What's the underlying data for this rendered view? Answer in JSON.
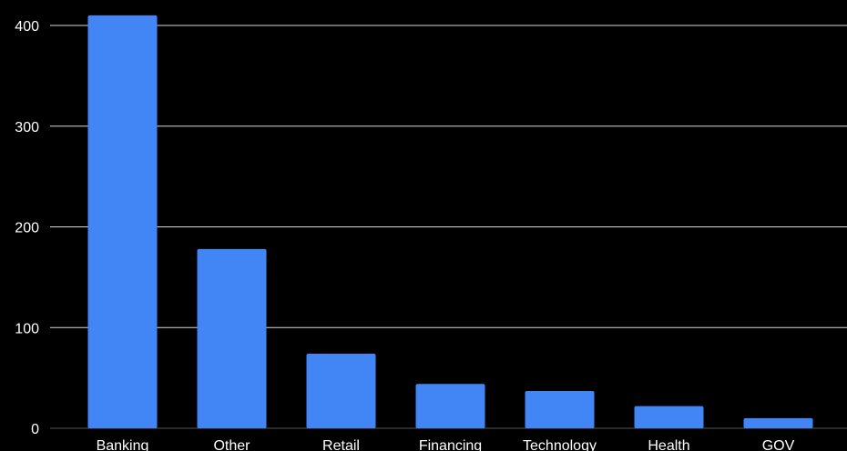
{
  "chart_data": {
    "type": "bar",
    "title": "",
    "xlabel": "",
    "ylabel": "",
    "categories": [
      "Banking",
      "Other",
      "Retail",
      "Financing",
      "Technology",
      "Health",
      "GOV"
    ],
    "values": [
      410,
      178,
      74,
      44,
      37,
      22,
      10
    ],
    "ylim": [
      0,
      400
    ],
    "yticks": [
      0,
      100,
      200,
      300,
      400
    ],
    "grid": true,
    "legend": "none"
  },
  "colors": {
    "background": "#000000",
    "bar": "#4285f4",
    "grid": "#ffffff",
    "text": "#ffffff"
  }
}
